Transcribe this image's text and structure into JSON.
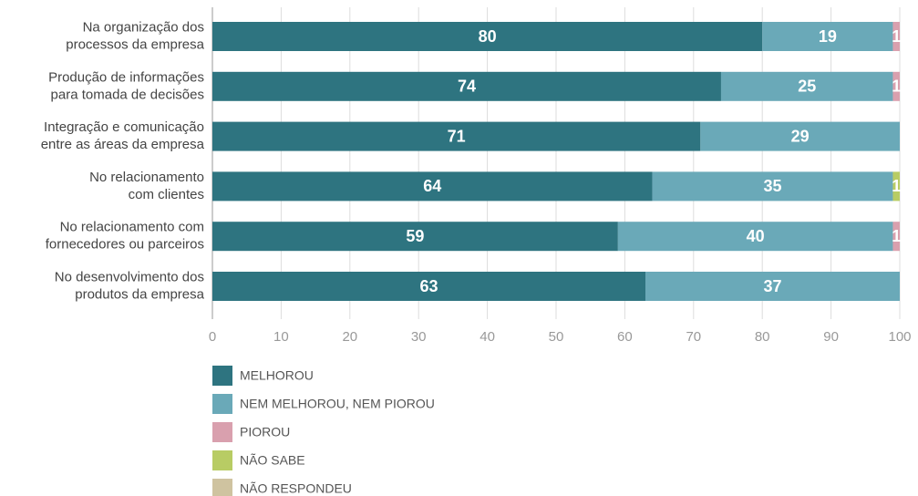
{
  "chart_data": {
    "type": "stacked-bar-horizontal",
    "categories": [
      [
        "Na organização dos",
        "processos da empresa"
      ],
      [
        "Produção de informações",
        "para tomada de decisões"
      ],
      [
        "Integração e comunicação",
        "entre as áreas da empresa"
      ],
      [
        "No relacionamento",
        "com clientes"
      ],
      [
        "No relacionamento com",
        "fornecedores ou parceiros"
      ],
      [
        "No desenvolvimento dos",
        "produtos da empresa"
      ]
    ],
    "series": [
      {
        "name": "MELHOROU",
        "color": "#2e7480",
        "values": [
          80,
          74,
          71,
          64,
          59,
          63
        ]
      },
      {
        "name": "NEM MELHOROU, NEM PIOROU",
        "color": "#6aa9b8",
        "values": [
          19,
          25,
          29,
          35,
          40,
          37
        ]
      },
      {
        "name": "PIOROU",
        "color": "#d9a0ae",
        "values": [
          1,
          1,
          null,
          null,
          1,
          null
        ]
      },
      {
        "name": "NÃO SABE",
        "color": "#b8cc64",
        "values": [
          null,
          null,
          null,
          1,
          null,
          null
        ]
      },
      {
        "name": "NÃO RESPONDEU",
        "color": "#cfc3a0",
        "values": [
          null,
          null,
          null,
          null,
          null,
          null
        ]
      }
    ],
    "xlim": [
      0,
      100
    ],
    "xticks": [
      0,
      10,
      20,
      30,
      40,
      50,
      60,
      70,
      80,
      90,
      100
    ],
    "grid": true
  }
}
